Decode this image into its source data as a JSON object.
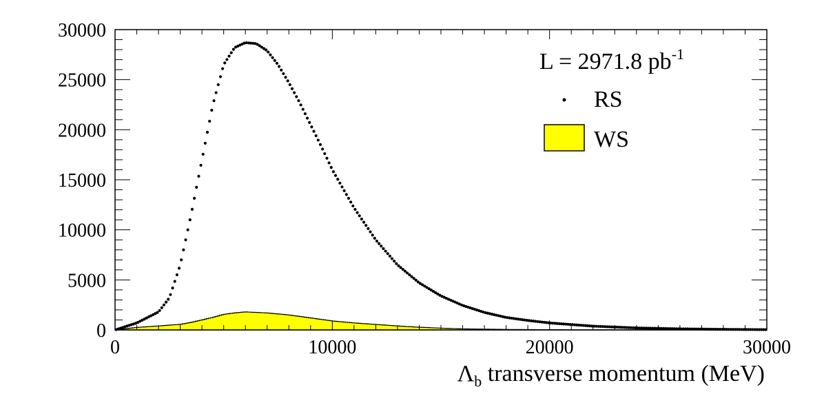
{
  "chart_data": {
    "type": "scatter",
    "x_label_symbol": "Λ",
    "x_label_sub": "b",
    "x_label_rest": " transverse momentum (MeV)",
    "ylabel": "",
    "xlim": [
      0,
      30000
    ],
    "ylim": [
      0,
      30000
    ],
    "x_ticks": [
      0,
      10000,
      20000,
      30000
    ],
    "x_tick_labels": [
      "0",
      "10000",
      "20000",
      "30000"
    ],
    "y_ticks": [
      0,
      5000,
      10000,
      15000,
      20000,
      25000,
      30000
    ],
    "y_tick_labels": [
      "0",
      "5000",
      "10000",
      "15000",
      "20000",
      "25000",
      "30000"
    ],
    "legend": {
      "placement": "top-right",
      "lumi_text": "L = 2971.8 pb",
      "lumi_sup": "-1",
      "entries": [
        {
          "label": "RS",
          "style": "marker"
        },
        {
          "label": "WS",
          "style": "fill"
        }
      ]
    },
    "series": [
      {
        "name": "RS",
        "kind": "points",
        "color": "#000000",
        "x": [
          0,
          1000,
          2000,
          2500,
          3000,
          3500,
          4000,
          4500,
          5000,
          5500,
          6000,
          6500,
          7000,
          7500,
          8000,
          8500,
          9000,
          9500,
          10000,
          11000,
          12000,
          13000,
          14000,
          15000,
          16000,
          17000,
          18000,
          19000,
          20000,
          22000,
          24000,
          26000,
          28000,
          30000
        ],
        "y": [
          0,
          700,
          1800,
          3200,
          6500,
          11500,
          17000,
          22500,
          26500,
          28200,
          28700,
          28600,
          27900,
          26500,
          24700,
          22700,
          20500,
          18300,
          16000,
          12200,
          9000,
          6500,
          4700,
          3400,
          2450,
          1750,
          1250,
          950,
          700,
          380,
          200,
          110,
          60,
          30
        ]
      },
      {
        "name": "WS",
        "kind": "filled-histogram",
        "color": "#ffff00",
        "x": [
          0,
          1000,
          2000,
          3000,
          3500,
          4000,
          4500,
          5000,
          5500,
          6000,
          6500,
          7000,
          7500,
          8000,
          9000,
          10000,
          11000,
          12000,
          13000,
          14000,
          15000,
          16000,
          18000,
          20000,
          25000,
          30000
        ],
        "y": [
          0,
          250,
          400,
          560,
          750,
          1000,
          1250,
          1550,
          1700,
          1800,
          1750,
          1700,
          1600,
          1500,
          1200,
          900,
          700,
          550,
          400,
          270,
          180,
          110,
          50,
          25,
          8,
          2
        ]
      }
    ]
  }
}
